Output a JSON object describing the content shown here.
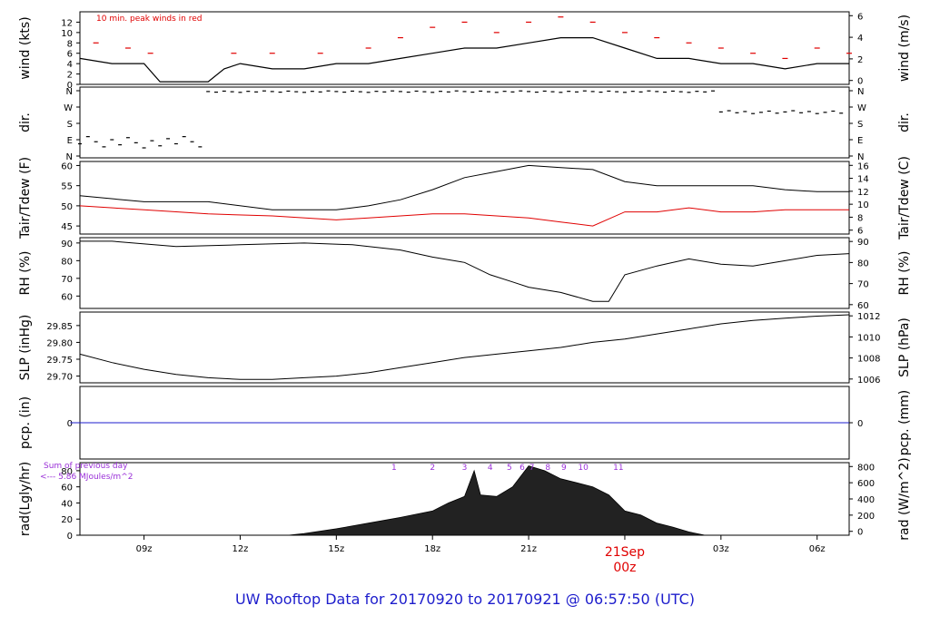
{
  "title": "UW Rooftop Data for 20170920  to  20170921 @ 06:57:50  (UTC)",
  "colors": {
    "title": "#1d1dcc",
    "peak": "#e00000",
    "dew": "#e00000",
    "pcp": "#1d1dcc",
    "purple": "#9a30d8",
    "line": "#000000"
  },
  "chart_data": [
    {
      "type": "line",
      "panel": "wind",
      "ylabel_left": "wind (kts)",
      "ylabel_right": "wind (m/s)",
      "annotation": "10 min. peak winds in red",
      "yticks_left": [
        "0",
        "2",
        "4",
        "6",
        "8",
        "10",
        "12"
      ],
      "yticks_right": [
        "0",
        "2",
        "4",
        "6"
      ],
      "ylim": [
        0,
        14
      ],
      "series": [
        {
          "name": "wind (kts)",
          "x": [
            7.0,
            8.0,
            9.0,
            9.5,
            10.0,
            11.0,
            11.5,
            12.0,
            13.0,
            14.0,
            15.0,
            16.0,
            17.0,
            18.0,
            19.0,
            20.0,
            21.0,
            22.0,
            23.0,
            24.0,
            25.0,
            26.0,
            27.0,
            28.0,
            29.0,
            30.0,
            31.0
          ],
          "values": [
            5,
            4,
            4,
            0.5,
            0.5,
            0.5,
            3,
            4,
            3,
            3,
            4,
            4,
            5,
            6,
            7,
            7,
            8,
            9,
            9,
            7,
            5,
            5,
            4,
            4,
            3,
            4,
            4
          ]
        },
        {
          "name": "10 min. peak winds",
          "x": [
            7.5,
            8.5,
            9.2,
            11.8,
            13.0,
            14.5,
            16.0,
            17.0,
            18.0,
            19.0,
            20.0,
            21.0,
            22.0,
            23.0,
            24.0,
            25.0,
            26.0,
            27.0,
            28.0,
            29.0,
            30.0,
            31.0
          ],
          "values": [
            8,
            7,
            6,
            6,
            6,
            6,
            7,
            9,
            11,
            12,
            10,
            12,
            13,
            12,
            10,
            9,
            8,
            7,
            6,
            5,
            7,
            6
          ]
        }
      ]
    },
    {
      "type": "scatter",
      "panel": "dir",
      "ylabel_left": "dir.",
      "ylabel_right": "dir.",
      "yticks_left": [
        "N",
        "E",
        "S",
        "W",
        "N"
      ],
      "yticks_right": [
        "N",
        "E",
        "S",
        "W",
        "N"
      ],
      "ylim": [
        0,
        360
      ]
    },
    {
      "type": "line",
      "panel": "temp",
      "ylabel_left": "Tair/Tdew (F)",
      "ylabel_right": "Tair/Tdew (C)",
      "yticks_left": [
        "45",
        "50",
        "55",
        "60"
      ],
      "yticks_right": [
        "6",
        "8",
        "10",
        "12",
        "14",
        "16"
      ],
      "ylim": [
        43,
        61
      ],
      "series": [
        {
          "name": "Tair",
          "x": [
            7.0,
            9.0,
            11.0,
            13.0,
            15.0,
            16.0,
            17.0,
            18.0,
            19.0,
            20.0,
            21.0,
            22.0,
            23.0,
            24.0,
            25.0,
            26.0,
            27.0,
            28.0,
            29.0,
            30.0,
            31.0
          ],
          "values": [
            52.5,
            51,
            51,
            49,
            49,
            50,
            51.5,
            54,
            57,
            58.5,
            60,
            59.5,
            59,
            56,
            55,
            55,
            55,
            55,
            54,
            53.5,
            53.5
          ]
        },
        {
          "name": "Tdew",
          "x": [
            7.0,
            9.0,
            11.0,
            13.0,
            15.0,
            16.0,
            17.0,
            18.0,
            19.0,
            20.0,
            21.0,
            22.0,
            23.0,
            24.0,
            25.0,
            26.0,
            27.0,
            28.0,
            29.0,
            30.0,
            31.0
          ],
          "values": [
            50,
            49,
            48,
            47.5,
            46.5,
            47,
            47.5,
            48,
            48,
            47.5,
            47,
            46,
            45,
            48.5,
            48.5,
            49.5,
            48.5,
            48.5,
            49,
            49,
            49
          ]
        }
      ]
    },
    {
      "type": "line",
      "panel": "rh",
      "ylabel_left": "RH (%)",
      "ylabel_right": "RH (%)",
      "yticks_left": [
        "60",
        "70",
        "80",
        "90"
      ],
      "yticks_right": [
        "60",
        "70",
        "80",
        "90"
      ],
      "ylim": [
        53,
        93
      ],
      "series": [
        {
          "name": "RH",
          "x": [
            7.0,
            8.0,
            10.0,
            12.0,
            14.0,
            15.5,
            17.0,
            18.0,
            19.0,
            19.8,
            20.5,
            21.0,
            22.0,
            23.0,
            23.5,
            24.0,
            25.0,
            26.0,
            27.0,
            28.0,
            29.0,
            30.0,
            31.0
          ],
          "values": [
            91,
            91,
            88,
            89,
            90,
            89,
            86,
            82,
            79,
            72,
            68,
            65,
            62,
            57,
            57,
            72,
            77,
            81,
            78,
            77,
            80,
            83,
            84
          ]
        }
      ]
    },
    {
      "type": "line",
      "panel": "slp",
      "ylabel_left": "SLP (inHg)",
      "ylabel_right": "SLP (hPa)",
      "yticks_left": [
        "29.70",
        "29.75",
        "29.80",
        "29.85"
      ],
      "yticks_right": [
        "1006",
        "1008",
        "1010",
        "1012"
      ],
      "ylim": [
        29.68,
        29.89
      ],
      "series": [
        {
          "name": "SLP",
          "x": [
            7.0,
            8.0,
            9.0,
            10.0,
            11.0,
            12.0,
            13.0,
            14.0,
            15.0,
            16.0,
            17.0,
            18.0,
            19.0,
            20.0,
            21.0,
            22.0,
            23.0,
            24.0,
            25.0,
            26.0,
            27.0,
            28.0,
            29.0,
            30.0,
            31.0
          ],
          "values": [
            29.765,
            29.74,
            29.72,
            29.705,
            29.695,
            29.69,
            29.69,
            29.695,
            29.7,
            29.71,
            29.725,
            29.74,
            29.755,
            29.765,
            29.775,
            29.785,
            29.8,
            29.81,
            29.825,
            29.84,
            29.855,
            29.865,
            29.872,
            29.878,
            29.882
          ]
        }
      ]
    },
    {
      "type": "line",
      "panel": "pcp",
      "ylabel_left": "pcp. (in)",
      "ylabel_right": "pcp. (mm)",
      "yticks_left": [
        "0"
      ],
      "yticks_right": [
        "0"
      ],
      "ylim": [
        -1,
        1
      ],
      "series": [
        {
          "name": "pcp",
          "x": [
            6.7,
            31.0
          ],
          "values": [
            0,
            0
          ]
        }
      ]
    },
    {
      "type": "area",
      "panel": "rad",
      "ylabel_left": "rad(Lgly/hr)",
      "ylabel_right": "rad (W/m^2)",
      "yticks_left": [
        "0",
        "20",
        "40",
        "60",
        "80"
      ],
      "yticks_right": [
        "0",
        "200",
        "400",
        "600",
        "800"
      ],
      "ylim": [
        0,
        90
      ],
      "note_lines": [
        "Sum of previous day",
        "<--- 5.86 MJoules/m^2"
      ],
      "hour_marks": [
        "1",
        "2",
        "3",
        "4",
        "5",
        "6",
        "7",
        "8",
        "9",
        "10",
        "11"
      ],
      "series": [
        {
          "name": "rad",
          "x": [
            13.5,
            14.0,
            15.0,
            16.0,
            17.0,
            18.0,
            18.5,
            19.0,
            19.3,
            19.5,
            20.0,
            20.5,
            21.0,
            21.5,
            22.0,
            22.5,
            23.0,
            23.5,
            24.0,
            24.5,
            25.0,
            25.5,
            26.0,
            26.5
          ],
          "values": [
            0,
            2,
            8,
            15,
            22,
            30,
            40,
            48,
            80,
            50,
            48,
            60,
            86,
            80,
            70,
            65,
            60,
            50,
            30,
            25,
            15,
            10,
            4,
            0
          ]
        }
      ]
    }
  ],
  "xaxis": {
    "ticks": [
      {
        "h": 9,
        "label": "09z"
      },
      {
        "h": 12,
        "label": "12z"
      },
      {
        "h": 15,
        "label": "15z"
      },
      {
        "h": 18,
        "label": "18z"
      },
      {
        "h": 21,
        "label": "21z"
      },
      {
        "h": 27,
        "label": "03z"
      },
      {
        "h": 30,
        "label": "06z"
      }
    ],
    "date_tick": {
      "h": 24,
      "label": "21Sep",
      "sublabel": "00z"
    },
    "xlim": [
      7.0,
      31.0
    ]
  }
}
